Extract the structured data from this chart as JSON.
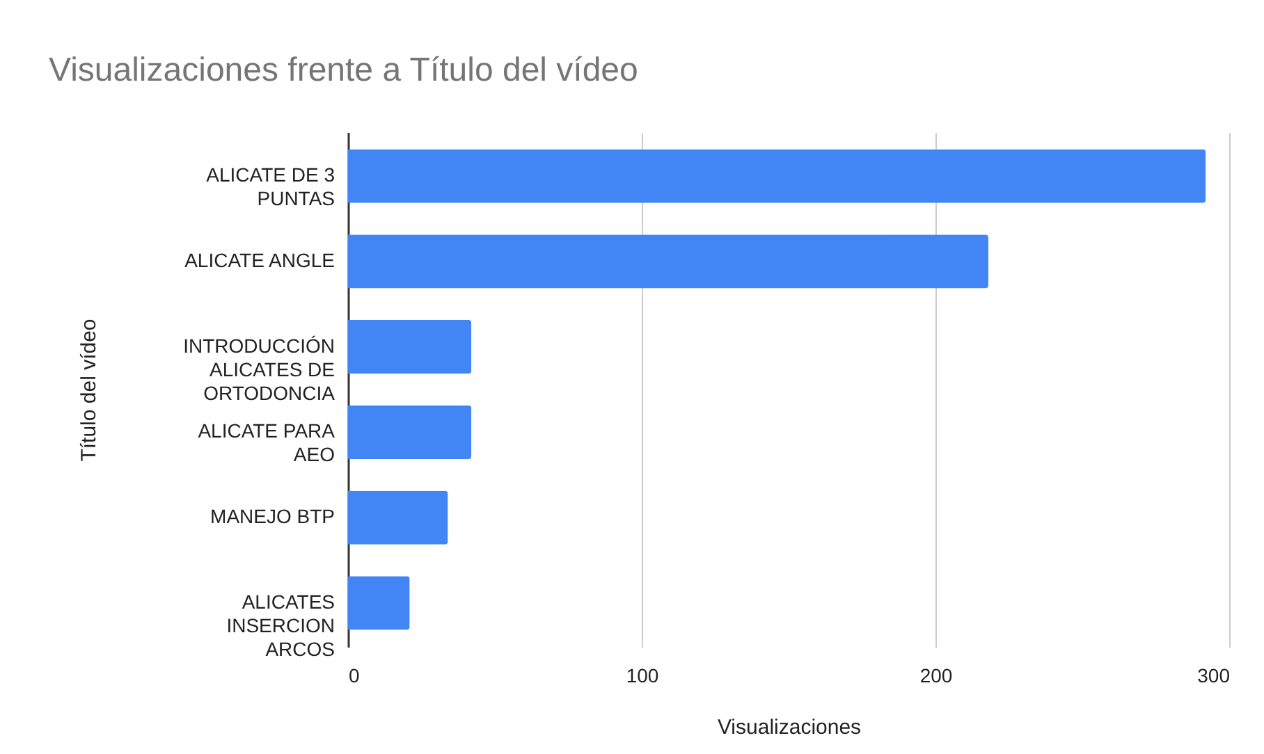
{
  "chart_data": {
    "type": "bar",
    "orientation": "horizontal",
    "title": "Visualizaciones frente a Título del vídeo",
    "xlabel": "Visualizaciones",
    "ylabel": "Título del vídeo",
    "categories": [
      "ALICATE DE 3 PUNTAS",
      "ALICATE ANGLE",
      "INTRODUCCIÓN ALICATES DE ORTODONCIA",
      "ALICATE PARA AEO",
      "MANEJO BTP",
      "ALICATES INSERCION ARCOS"
    ],
    "values": [
      292,
      218,
      42,
      42,
      34,
      21
    ],
    "color": "#4285f4",
    "xlim": [
      0,
      300
    ],
    "xticks": [
      0,
      100,
      200,
      300
    ],
    "grid": "x"
  }
}
